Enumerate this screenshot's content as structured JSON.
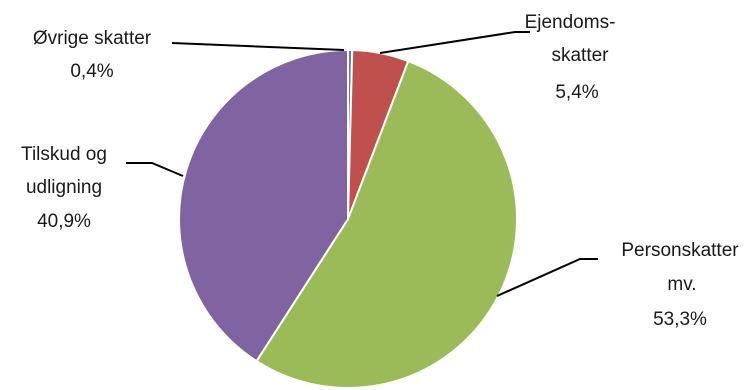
{
  "chart_data": {
    "type": "pie",
    "title": "",
    "slices": [
      {
        "label_lines": [
          "Øvrige skatter"
        ],
        "value_text": "0,4%",
        "value": 0.4,
        "color": "#4F81BD"
      },
      {
        "label_lines": [
          "Ejendoms-",
          "skatter"
        ],
        "value_text": "5,4%",
        "value": 5.4,
        "color": "#C0504D"
      },
      {
        "label_lines": [
          "Personskatter",
          "mv."
        ],
        "value_text": "53,3%",
        "value": 53.3,
        "color": "#9BBB59"
      },
      {
        "label_lines": [
          "Tilskud og",
          "udligning"
        ],
        "value_text": "40,9%",
        "value": 40.9,
        "color": "#8064A2"
      }
    ]
  }
}
